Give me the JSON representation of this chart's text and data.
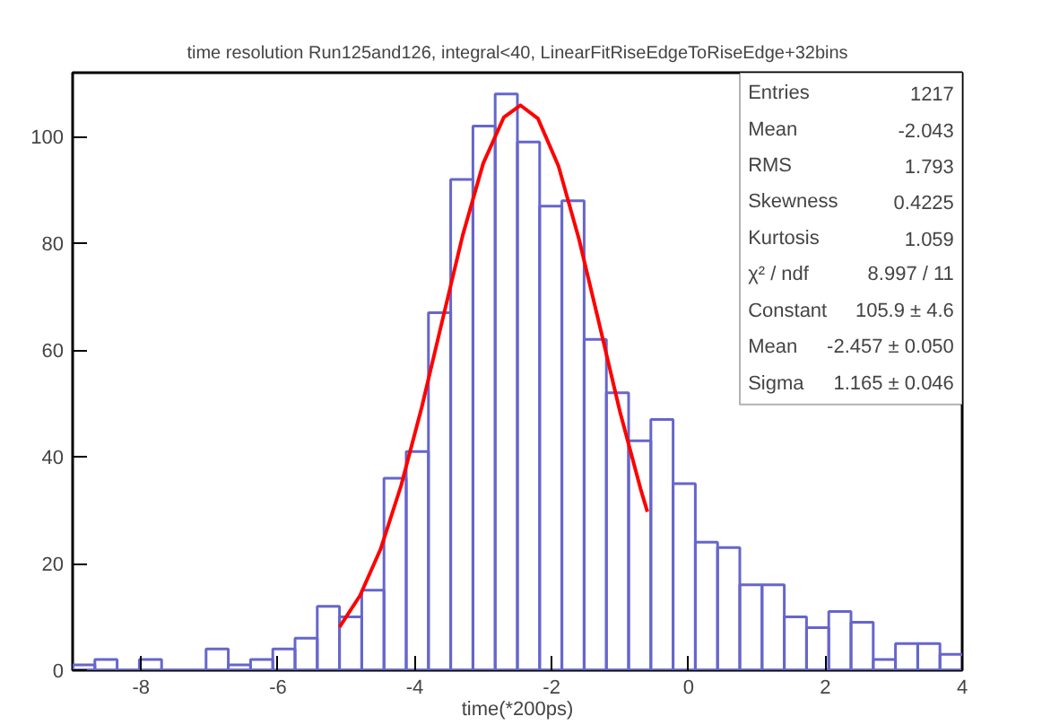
{
  "chart_data": {
    "type": "histogram",
    "title": "time resolution Run125and126, integral<40, LinearFitRiseEdgeToRiseEdge+32bins",
    "xlabel": "time(*200ps)",
    "bins": [
      -9,
      -8.675,
      -8.35,
      -8.025,
      -7.7,
      -7.375,
      -7.05,
      -6.725,
      -6.4,
      -6.075,
      -5.75,
      -5.425,
      -5.1,
      -4.775,
      -4.45,
      -4.125,
      -3.8,
      -3.475,
      -3.15,
      -2.825,
      -2.5,
      -2.175,
      -1.85,
      -1.525,
      -1.2,
      -0.875,
      -0.55,
      -0.225,
      0.1,
      0.425,
      0.75,
      1.075,
      1.4,
      1.725,
      2.05,
      2.375,
      2.7,
      3.025,
      3.35,
      3.675,
      4
    ],
    "series": [
      {
        "color": "#6666cc",
        "values": [
          1,
          2,
          0,
          2,
          0,
          0,
          4,
          1,
          2,
          4,
          6,
          12,
          10,
          15,
          36,
          41,
          67,
          92,
          102,
          108,
          99,
          87,
          88,
          62,
          52,
          43,
          47,
          35,
          24,
          23,
          16,
          16,
          10,
          8,
          11,
          9,
          2,
          5,
          5,
          3
        ]
      },
      {
        "type": "line",
        "color": "#ff0000",
        "x": [
          -5.1,
          -4.8,
          -4.5,
          -4.2,
          -3.9,
          -3.6,
          -3.3,
          -3.0,
          -2.7,
          -2.457,
          -2.2,
          -1.9,
          -1.6,
          -1.3,
          -1.0,
          -0.7,
          -0.6
        ],
        "values": [
          8.1,
          14.0,
          22.7,
          34.6,
          49.2,
          65.4,
          81.5,
          95.0,
          103.6,
          105.9,
          103.4,
          94.5,
          80.8,
          64.7,
          48.4,
          34.0,
          29.7
        ]
      }
    ],
    "annotations": [
      "Entries\t1217",
      "Mean\t-2.043",
      "RMS\t1.793",
      "Skewness\t0.4225",
      "Kurtosis\t1.059",
      "χ² / ndf\t8.997 / 11",
      "Constant\t105.9 ± 4.6",
      "Mean\t-2.457 ± 0.050",
      "Sigma\t1.165 ± 0.046"
    ],
    "xlim": [
      -9,
      4
    ],
    "ylim": [
      0,
      112
    ],
    "xticks": [
      -8,
      -6,
      -4,
      -2,
      0,
      2,
      4
    ],
    "yticks": [
      0,
      20,
      40,
      60,
      80,
      100
    ],
    "grid": false
  }
}
